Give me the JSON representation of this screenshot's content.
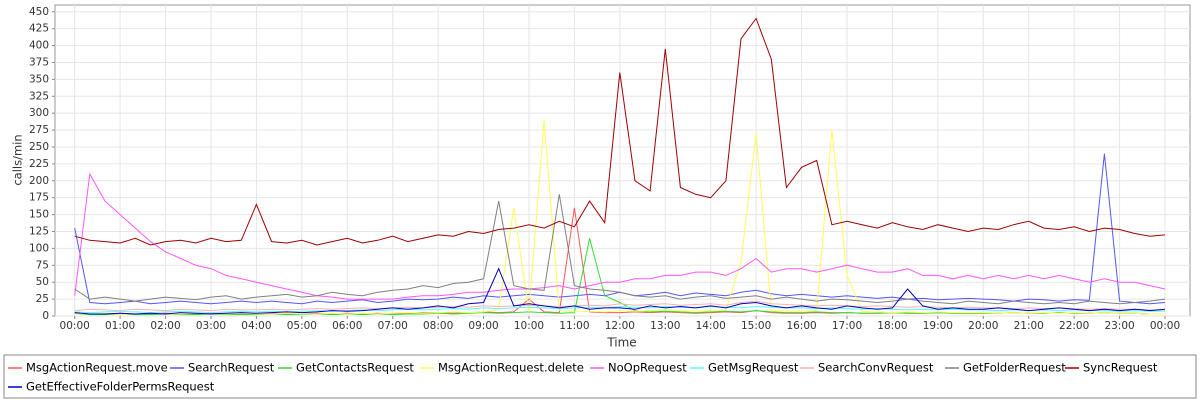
{
  "chart_data": {
    "type": "line",
    "y_label": "calls/min",
    "x_label": "Time",
    "xlim": [
      -26,
      1473
    ],
    "ylim": [
      0,
      460
    ],
    "yticks": [
      0,
      25,
      50,
      75,
      100,
      125,
      150,
      175,
      200,
      225,
      250,
      275,
      300,
      325,
      350,
      375,
      400,
      425,
      450
    ],
    "xticks": [
      {
        "value": 0,
        "label": "00:00"
      },
      {
        "value": 60,
        "label": "01:00"
      },
      {
        "value": 120,
        "label": "02:00"
      },
      {
        "value": 180,
        "label": "03:00"
      },
      {
        "value": 240,
        "label": "04:00"
      },
      {
        "value": 300,
        "label": "05:00"
      },
      {
        "value": 360,
        "label": "06:00"
      },
      {
        "value": 420,
        "label": "07:00"
      },
      {
        "value": 480,
        "label": "08:00"
      },
      {
        "value": 540,
        "label": "09:00"
      },
      {
        "value": 600,
        "label": "10:00"
      },
      {
        "value": 660,
        "label": "11:00"
      },
      {
        "value": 720,
        "label": "12:00"
      },
      {
        "value": 780,
        "label": "13:00"
      },
      {
        "value": 840,
        "label": "14:00"
      },
      {
        "value": 900,
        "label": "15:00"
      },
      {
        "value": 960,
        "label": "16:00"
      },
      {
        "value": 1020,
        "label": "17:00"
      },
      {
        "value": 1080,
        "label": "18:00"
      },
      {
        "value": 1140,
        "label": "19:00"
      },
      {
        "value": 1200,
        "label": "20:00"
      },
      {
        "value": 1260,
        "label": "21:00"
      },
      {
        "value": 1320,
        "label": "22:00"
      },
      {
        "value": 1380,
        "label": "23:00"
      },
      {
        "value": 1440,
        "label": "00:00"
      }
    ],
    "grid": true,
    "legend": "bottom",
    "x": [
      0,
      20,
      40,
      60,
      80,
      100,
      120,
      140,
      160,
      180,
      200,
      220,
      240,
      260,
      280,
      300,
      320,
      340,
      360,
      380,
      400,
      420,
      440,
      460,
      480,
      500,
      520,
      540,
      560,
      580,
      600,
      620,
      640,
      660,
      680,
      700,
      720,
      740,
      760,
      780,
      800,
      820,
      840,
      860,
      880,
      900,
      920,
      940,
      960,
      980,
      1000,
      1020,
      1040,
      1060,
      1080,
      1100,
      1120,
      1140,
      1160,
      1180,
      1200,
      1220,
      1240,
      1260,
      1280,
      1300,
      1320,
      1340,
      1360,
      1380,
      1400,
      1420,
      1440
    ],
    "series": [
      {
        "name": "MsgActionRequest.move",
        "color": "#ff5555",
        "values": [
          4,
          3,
          3,
          4,
          3,
          3,
          4,
          3,
          3,
          4,
          3,
          3,
          3,
          4,
          3,
          3,
          4,
          3,
          4,
          3,
          4,
          3,
          4,
          5,
          5,
          4,
          5,
          6,
          5,
          6,
          25,
          6,
          5,
          160,
          6,
          5,
          5,
          6,
          5,
          6,
          5,
          4,
          5,
          6,
          5,
          8,
          5,
          4,
          4,
          5,
          4,
          5,
          4,
          4,
          5,
          4,
          4,
          5,
          4,
          4,
          4,
          4,
          5,
          4,
          4,
          5,
          4,
          4,
          5,
          4,
          4,
          3,
          3
        ]
      },
      {
        "name": "SearchRequest",
        "color": "#5555ff",
        "values": [
          130,
          20,
          18,
          20,
          22,
          18,
          20,
          22,
          20,
          18,
          20,
          22,
          20,
          22,
          20,
          18,
          22,
          20,
          22,
          24,
          20,
          22,
          25,
          24,
          25,
          28,
          26,
          30,
          28,
          30,
          32,
          30,
          28,
          30,
          32,
          30,
          35,
          30,
          32,
          35,
          30,
          34,
          32,
          30,
          35,
          38,
          33,
          30,
          32,
          30,
          28,
          30,
          28,
          26,
          28,
          25,
          26,
          24,
          25,
          26,
          25,
          24,
          22,
          25,
          24,
          22,
          24,
          23,
          240,
          22,
          20,
          18,
          20
        ]
      },
      {
        "name": "GetContactsRequest",
        "color": "#33dd33",
        "values": [
          3,
          2,
          2,
          3,
          2,
          2,
          3,
          2,
          2,
          3,
          2,
          2,
          2,
          3,
          2,
          2,
          3,
          2,
          3,
          2,
          3,
          2,
          3,
          3,
          4,
          3,
          4,
          5,
          4,
          5,
          6,
          5,
          4,
          5,
          115,
          30,
          20,
          8,
          6,
          7,
          6,
          5,
          6,
          7,
          6,
          8,
          6,
          5,
          5,
          6,
          5,
          5,
          4,
          4,
          5,
          4,
          4,
          5,
          4,
          4,
          4,
          4,
          5,
          4,
          4,
          5,
          4,
          4,
          5,
          4,
          4,
          3,
          3
        ]
      },
      {
        "name": "MsgActionRequest.delete",
        "color": "#ffff55",
        "values": [
          3,
          3,
          4,
          3,
          3,
          4,
          3,
          3,
          4,
          3,
          3,
          4,
          3,
          3,
          4,
          3,
          3,
          4,
          3,
          4,
          3,
          4,
          5,
          4,
          5,
          6,
          5,
          6,
          10,
          160,
          6,
          290,
          8,
          6,
          7,
          6,
          8,
          7,
          8,
          9,
          8,
          7,
          8,
          9,
          80,
          270,
          8,
          7,
          7,
          8,
          275,
          60,
          7,
          6,
          5,
          6,
          5,
          6,
          5,
          5,
          5,
          4,
          5,
          4,
          5,
          4,
          5,
          4,
          5,
          4,
          4,
          3,
          3
        ]
      },
      {
        "name": "NoOpRequest",
        "color": "#ff55ff",
        "values": [
          30,
          210,
          170,
          150,
          130,
          110,
          95,
          85,
          75,
          70,
          60,
          55,
          50,
          45,
          40,
          35,
          30,
          28,
          25,
          25,
          25,
          25,
          28,
          30,
          30,
          32,
          35,
          35,
          38,
          40,
          40,
          42,
          45,
          40,
          45,
          50,
          50,
          55,
          55,
          60,
          60,
          65,
          65,
          60,
          70,
          85,
          65,
          70,
          70,
          65,
          70,
          75,
          70,
          65,
          65,
          70,
          60,
          60,
          55,
          60,
          55,
          60,
          55,
          60,
          55,
          60,
          55,
          50,
          55,
          50,
          50,
          45,
          40
        ]
      },
      {
        "name": "GetMsgRequest",
        "color": "#55ffff",
        "values": [
          6,
          5,
          6,
          7,
          6,
          5,
          6,
          7,
          6,
          5,
          6,
          7,
          6,
          7,
          6,
          7,
          8,
          7,
          8,
          9,
          8,
          9,
          10,
          9,
          10,
          11,
          10,
          12,
          11,
          12,
          13,
          12,
          11,
          12,
          13,
          12,
          14,
          13,
          12,
          14,
          13,
          12,
          14,
          13,
          12,
          14,
          13,
          12,
          12,
          11,
          12,
          11,
          10,
          11,
          10,
          9,
          10,
          9,
          10,
          9,
          9,
          8,
          9,
          8,
          9,
          8,
          9,
          8,
          8,
          7,
          8,
          7,
          7
        ]
      },
      {
        "name": "SearchConvRequest",
        "color": "#ffafaf",
        "values": [
          8,
          10,
          9,
          8,
          10,
          9,
          8,
          10,
          9,
          8,
          10,
          9,
          9,
          10,
          9,
          10,
          11,
          10,
          11,
          12,
          11,
          12,
          13,
          12,
          13,
          14,
          13,
          15,
          14,
          15,
          16,
          15,
          14,
          15,
          16,
          15,
          18,
          16,
          17,
          18,
          16,
          17,
          18,
          16,
          20,
          22,
          18,
          17,
          16,
          15,
          16,
          15,
          14,
          15,
          14,
          13,
          14,
          13,
          12,
          13,
          12,
          12,
          11,
          12,
          11,
          12,
          11,
          10,
          11,
          10,
          10,
          9,
          9
        ]
      },
      {
        "name": "GetFolderRequest",
        "color": "#808080",
        "values": [
          40,
          25,
          28,
          25,
          22,
          25,
          28,
          26,
          24,
          28,
          30,
          25,
          28,
          30,
          32,
          28,
          30,
          35,
          32,
          30,
          35,
          38,
          40,
          45,
          42,
          48,
          50,
          55,
          170,
          45,
          40,
          38,
          180,
          45,
          40,
          38,
          35,
          30,
          28,
          30,
          25,
          28,
          30,
          26,
          28,
          30,
          25,
          28,
          25,
          22,
          25,
          24,
          22,
          20,
          22,
          25,
          22,
          20,
          18,
          22,
          20,
          18,
          22,
          20,
          18,
          20,
          18,
          22,
          20,
          18,
          20,
          22,
          25
        ]
      },
      {
        "name": "SyncRequest",
        "color": "#a00000",
        "values": [
          118,
          112,
          110,
          108,
          115,
          105,
          110,
          112,
          108,
          115,
          110,
          112,
          165,
          110,
          108,
          112,
          105,
          110,
          115,
          108,
          112,
          118,
          110,
          115,
          120,
          118,
          125,
          122,
          128,
          130,
          135,
          130,
          140,
          132,
          170,
          138,
          360,
          200,
          185,
          395,
          190,
          180,
          175,
          200,
          410,
          440,
          380,
          190,
          220,
          230,
          135,
          140,
          135,
          130,
          138,
          132,
          128,
          135,
          130,
          125,
          130,
          128,
          135,
          140,
          130,
          128,
          132,
          125,
          130,
          128,
          122,
          118,
          120
        ]
      },
      {
        "name": "GetEffectiveFolderPermsRequest",
        "color": "#0000c0",
        "values": [
          5,
          3,
          3,
          4,
          3,
          4,
          3,
          5,
          4,
          3,
          4,
          5,
          4,
          5,
          6,
          5,
          6,
          8,
          7,
          8,
          10,
          12,
          10,
          12,
          15,
          12,
          18,
          20,
          70,
          15,
          18,
          15,
          12,
          15,
          10,
          12,
          12,
          10,
          15,
          12,
          14,
          12,
          15,
          12,
          18,
          20,
          15,
          12,
          15,
          12,
          10,
          15,
          12,
          10,
          12,
          40,
          15,
          10,
          12,
          10,
          10,
          12,
          10,
          8,
          10,
          12,
          10,
          8,
          10,
          8,
          10,
          8,
          10
        ]
      }
    ]
  }
}
